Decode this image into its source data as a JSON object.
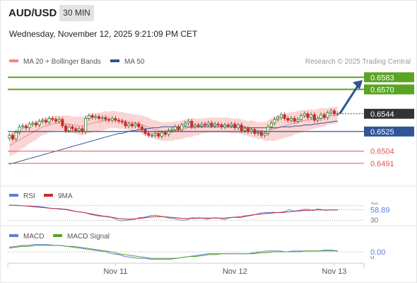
{
  "header": {
    "symbol": "AUD/USD",
    "timeframe": "30 MIN",
    "datetime": "Wednesday, November 12, 2025 9:21:09 PM CET"
  },
  "colors": {
    "candle_up": "#3a7a2e",
    "candle_down": "#cc2a2a",
    "bollinger_fill": "#fbd5d5",
    "ma20": "#ee8a8a",
    "ma50": "#2f5597",
    "resistance": "#5aa423",
    "pivot": "#2f5597",
    "support": "#e0555a",
    "arrow": "#2f5597",
    "rsi": "#5b7fd6",
    "rsi_ma": "#cc2a2a",
    "macd": "#5b7fd6",
    "macd_signal": "#5aa423"
  },
  "chart_data": [
    {
      "type": "candlestick",
      "legend": [
        {
          "label": "MA 20 + Bollinger Bands",
          "color": "#ee8a8a"
        },
        {
          "label": "MA 50",
          "color": "#2f5597"
        }
      ],
      "copyright": "Research © 2025 Trading Central",
      "ylim": [
        0.6478,
        0.659
      ],
      "last_price": 0.6544,
      "levels": [
        {
          "value": 0.6583,
          "label": "0.6583",
          "kind": "resistance"
        },
        {
          "value": 0.657,
          "label": "0.6570",
          "kind": "resistance"
        },
        {
          "value": 0.6544,
          "label": "0.6544",
          "kind": "last"
        },
        {
          "value": 0.6525,
          "label": "0.6525",
          "kind": "pivot"
        },
        {
          "value": 0.6504,
          "label": "0.6504",
          "kind": "support"
        },
        {
          "value": 0.6491,
          "label": "0.6491",
          "kind": "support"
        }
      ],
      "arrow": {
        "from_bar": 99,
        "from_value": 0.6544,
        "to_value": 0.658
      },
      "closes": [
        0.6521,
        0.6517,
        0.6524,
        0.653,
        0.6531,
        0.6529,
        0.6533,
        0.6534,
        0.6532,
        0.6536,
        0.6537,
        0.6535,
        0.6539,
        0.6538,
        0.6536,
        0.6538,
        0.6531,
        0.6526,
        0.653,
        0.6528,
        0.6526,
        0.6528,
        0.6525,
        0.6539,
        0.6542,
        0.654,
        0.6541,
        0.6539,
        0.654,
        0.6538,
        0.6537,
        0.6539,
        0.6537,
        0.6536,
        0.6535,
        0.6531,
        0.6533,
        0.6531,
        0.6533,
        0.653,
        0.6527,
        0.6523,
        0.6521,
        0.6521,
        0.6523,
        0.652,
        0.6524,
        0.6522,
        0.6526,
        0.6527,
        0.653,
        0.6527,
        0.6532,
        0.6534,
        0.6536,
        0.653,
        0.6532,
        0.6531,
        0.6533,
        0.6532,
        0.6534,
        0.6531,
        0.6533,
        0.6532,
        0.653,
        0.6532,
        0.6531,
        0.6533,
        0.6529,
        0.6532,
        0.6526,
        0.6528,
        0.6525,
        0.6527,
        0.6523,
        0.6524,
        0.6521,
        0.6523,
        0.653,
        0.6534,
        0.6538,
        0.654,
        0.6543,
        0.6539,
        0.6537,
        0.6539,
        0.6536,
        0.6538,
        0.6542,
        0.6544,
        0.654,
        0.6543,
        0.6537,
        0.6539,
        0.6543,
        0.654,
        0.6545,
        0.6547,
        0.6544,
        0.6544
      ],
      "ma20": [
        0.651,
        0.6512,
        0.6514,
        0.6516,
        0.6518,
        0.652,
        0.6522,
        0.6524,
        0.6526,
        0.6528,
        0.653,
        0.6531,
        0.6532,
        0.6533,
        0.6534,
        0.6534,
        0.6534,
        0.6533,
        0.6533,
        0.6532,
        0.6532,
        0.6531,
        0.6531,
        0.6532,
        0.6533,
        0.6534,
        0.6535,
        0.6535,
        0.6536,
        0.6537,
        0.6537,
        0.6538,
        0.6538,
        0.6537,
        0.6537,
        0.6536,
        0.6535,
        0.6535,
        0.6534,
        0.6534,
        0.6532,
        0.6531,
        0.653,
        0.6528,
        0.6527,
        0.6526,
        0.6525,
        0.6525,
        0.6525,
        0.6525,
        0.6526,
        0.6526,
        0.6527,
        0.6528,
        0.6529,
        0.6529,
        0.653,
        0.653,
        0.6531,
        0.6531,
        0.6532,
        0.6532,
        0.6532,
        0.6532,
        0.6532,
        0.6532,
        0.6532,
        0.6531,
        0.6531,
        0.6531,
        0.653,
        0.6529,
        0.6528,
        0.6528,
        0.6527,
        0.6526,
        0.6526,
        0.6525,
        0.6526,
        0.6527,
        0.6528,
        0.6529,
        0.653,
        0.6531,
        0.6532,
        0.6533,
        0.6534,
        0.6535,
        0.6536,
        0.6537,
        0.6537,
        0.6538,
        0.6538,
        0.6539,
        0.654,
        0.654,
        0.6541,
        0.6542,
        0.6542,
        0.6543
      ],
      "ma50": [
        0.649,
        0.6491,
        0.6492,
        0.6493,
        0.6494,
        0.6495,
        0.6496,
        0.6497,
        0.6498,
        0.6499,
        0.65,
        0.6501,
        0.6502,
        0.6503,
        0.6504,
        0.6505,
        0.6506,
        0.6507,
        0.6508,
        0.6509,
        0.651,
        0.6511,
        0.6512,
        0.6513,
        0.6514,
        0.6515,
        0.6516,
        0.6517,
        0.6518,
        0.6519,
        0.652,
        0.6521,
        0.6522,
        0.6523,
        0.6523,
        0.6524,
        0.6525,
        0.6526,
        0.6526,
        0.6527,
        0.6527,
        0.6528,
        0.6528,
        0.6529,
        0.6529,
        0.6529,
        0.653,
        0.653,
        0.653,
        0.653,
        0.653,
        0.653,
        0.653,
        0.653,
        0.653,
        0.653,
        0.653,
        0.653,
        0.653,
        0.653,
        0.653,
        0.653,
        0.653,
        0.653,
        0.653,
        0.653,
        0.653,
        0.653,
        0.653,
        0.653,
        0.653,
        0.653,
        0.6529,
        0.6529,
        0.6529,
        0.6529,
        0.6529,
        0.6529,
        0.6529,
        0.6529,
        0.6529,
        0.6529,
        0.653,
        0.653,
        0.653,
        0.653,
        0.6531,
        0.6531,
        0.6531,
        0.6532,
        0.6532,
        0.6532,
        0.6533,
        0.6533,
        0.6534,
        0.6534,
        0.6535,
        0.6535,
        0.6536,
        0.6536
      ],
      "band_width": [
        0.0012,
        0.0012,
        0.0012,
        0.0011,
        0.0011,
        0.0011,
        0.001,
        0.001,
        0.001,
        0.0009,
        0.0009,
        0.0009,
        0.0008,
        0.0008,
        0.0008,
        0.0008,
        0.0008,
        0.0009,
        0.0009,
        0.0009,
        0.0009,
        0.001,
        0.001,
        0.001,
        0.001,
        0.001,
        0.001,
        0.001,
        0.001,
        0.001,
        0.0009,
        0.0009,
        0.0009,
        0.0009,
        0.0009,
        0.0009,
        0.0009,
        0.0009,
        0.0009,
        0.0009,
        0.001,
        0.001,
        0.001,
        0.001,
        0.001,
        0.001,
        0.001,
        0.001,
        0.001,
        0.001,
        0.001,
        0.001,
        0.001,
        0.001,
        0.001,
        0.001,
        0.0009,
        0.0009,
        0.0008,
        0.0008,
        0.0008,
        0.0008,
        0.0008,
        0.0008,
        0.0008,
        0.0008,
        0.0008,
        0.0008,
        0.0008,
        0.0008,
        0.0008,
        0.0008,
        0.0008,
        0.0009,
        0.0009,
        0.0009,
        0.0009,
        0.001,
        0.0011,
        0.0012,
        0.0013,
        0.0013,
        0.0013,
        0.0013,
        0.0013,
        0.0013,
        0.0012,
        0.0012,
        0.0012,
        0.0011,
        0.0011,
        0.0011,
        0.001,
        0.001,
        0.001,
        0.001,
        0.0009,
        0.0009,
        0.0009,
        0.0009
      ]
    },
    {
      "type": "line",
      "legend": [
        {
          "label": "RSI",
          "color": "#5b7fd6"
        },
        {
          "label": "9MA",
          "color": "#cc2a2a"
        }
      ],
      "ticks": [
        "70",
        "30"
      ],
      "ylim": [
        25,
        75
      ],
      "value_label": "58.89",
      "series": [
        {
          "name": "RSI",
          "values": [
            72,
            71,
            71,
            70,
            69,
            69,
            68,
            68,
            67,
            65,
            63,
            62,
            62,
            61,
            60,
            58,
            55,
            53,
            52,
            50,
            46,
            44,
            42,
            41,
            40,
            38,
            35,
            30,
            29,
            30,
            32,
            33,
            37,
            38,
            40,
            43,
            44,
            42,
            40,
            37,
            35,
            34,
            31,
            30,
            32,
            37,
            36,
            37,
            35,
            33,
            36,
            37,
            35,
            32,
            36,
            38,
            38,
            37,
            40,
            42,
            44,
            47,
            50,
            51,
            51,
            52,
            51,
            52,
            54,
            59,
            55,
            56,
            58,
            60,
            59,
            56,
            61,
            59,
            57,
            58,
            58,
            59
          ]
        },
        {
          "name": "9MA",
          "values": [
            71,
            71,
            70,
            70,
            69,
            68,
            67,
            66,
            65,
            64,
            63,
            62,
            61,
            60,
            59,
            57,
            55,
            53,
            52,
            50,
            48,
            46,
            44,
            42,
            41,
            39,
            37,
            35,
            34,
            33,
            33,
            34,
            35,
            36,
            38,
            39,
            40,
            40,
            40,
            39,
            38,
            37,
            36,
            35,
            35,
            35,
            35,
            36,
            36,
            36,
            36,
            36,
            36,
            36,
            37,
            38,
            39,
            40,
            42,
            43,
            45,
            46,
            47,
            48,
            49,
            50,
            51,
            51,
            52,
            53,
            54,
            55,
            56,
            57,
            57,
            58,
            58,
            58,
            58,
            58,
            58,
            58
          ]
        }
      ]
    },
    {
      "type": "line",
      "legend": [
        {
          "label": "MACD",
          "color": "#5b7fd6"
        },
        {
          "label": "MACD Signal",
          "color": "#5aa423"
        }
      ],
      "ticks": [
        "0"
      ],
      "ylim": [
        -0.001,
        0.001
      ],
      "value_label": "0.00",
      "series": [
        {
          "name": "MACD",
          "values": [
            0.0005,
            0.0006,
            0.0007,
            0.0007,
            0.0008,
            0.0008,
            0.0008,
            0.0007,
            0.0007,
            0.0006,
            0.0005,
            0.0004,
            0.0003,
            0.0002,
            0.0001,
            0.0,
            -0.0002,
            -0.0003,
            -0.0005,
            -0.0006,
            -0.0007,
            -0.0007,
            -0.0008,
            -0.0008,
            -0.0008,
            -0.0008,
            -0.0007,
            -0.0006,
            -0.0005,
            -0.0004,
            -0.0003,
            -0.0002,
            -0.0002,
            -0.0002,
            -0.0002,
            -0.0002,
            -0.0002,
            -0.0002,
            -0.0001,
            0.0,
            0.0001,
            0.0001,
            0.0001,
            0.0,
            0.0001,
            0.0001,
            0.0001,
            0.0001,
            0.0001,
            0.0002,
            0.0002,
            0.0001
          ]
        },
        {
          "name": "MACD Signal",
          "values": [
            0.0004,
            0.0005,
            0.0006,
            0.0006,
            0.0007,
            0.0007,
            0.0007,
            0.0007,
            0.0007,
            0.0006,
            0.0006,
            0.0005,
            0.0004,
            0.0003,
            0.0002,
            0.0001,
            0.0,
            -0.0002,
            -0.0003,
            -0.0004,
            -0.0005,
            -0.0006,
            -0.0007,
            -0.0007,
            -0.0007,
            -0.0007,
            -0.0007,
            -0.0006,
            -0.0005,
            -0.0005,
            -0.0004,
            -0.0003,
            -0.0003,
            -0.0002,
            -0.0002,
            -0.0002,
            -0.0002,
            -0.0002,
            -0.0002,
            -0.0001,
            -0.0001,
            0.0,
            0.0,
            0.0,
            0.0,
            0.0,
            0.0001,
            0.0001,
            0.0001,
            0.0001,
            0.0001,
            0.0001
          ]
        }
      ]
    }
  ],
  "x_axis": {
    "labels": [
      {
        "label": "Nov 11",
        "bar": 32
      },
      {
        "label": "Nov 12",
        "bar": 68
      },
      {
        "label": "Nov 13",
        "bar": 98
      }
    ]
  }
}
